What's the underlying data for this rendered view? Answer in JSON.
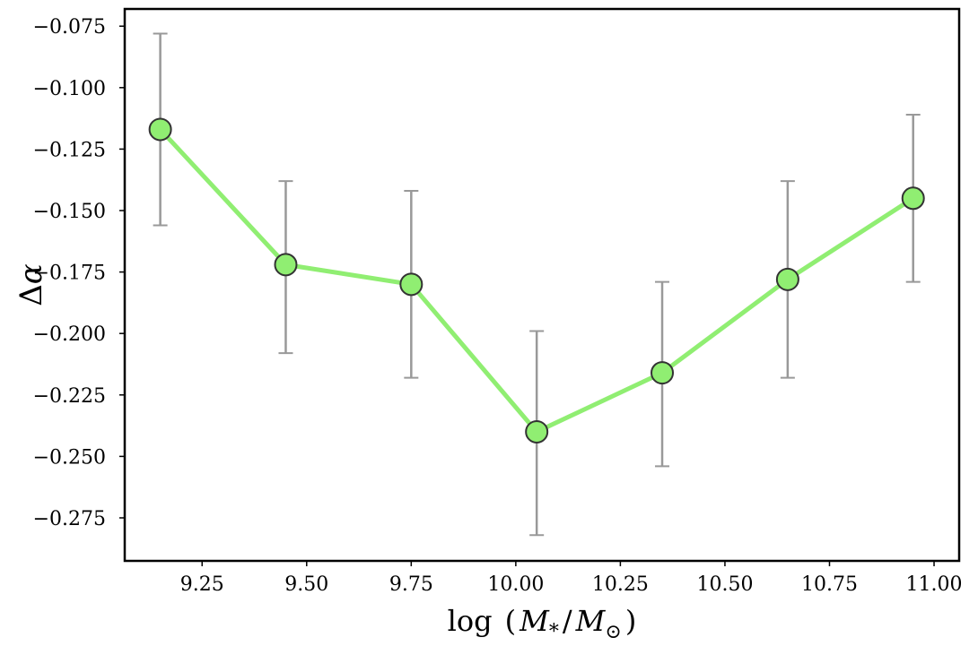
{
  "chart_data": {
    "type": "line",
    "xlabel": "log (M* / M⊙)",
    "ylabel": "Δα",
    "xlim": [
      9.065,
      11.06
    ],
    "ylim": [
      -0.2925,
      -0.068
    ],
    "xticks": [
      9.25,
      9.5,
      9.75,
      10.0,
      10.25,
      10.5,
      10.75,
      11.0
    ],
    "xtick_labels": [
      "9.25",
      "9.50",
      "9.75",
      "10.00",
      "10.25",
      "10.50",
      "10.75",
      "11.00"
    ],
    "yticks": [
      -0.075,
      -0.1,
      -0.125,
      -0.15,
      -0.175,
      -0.2,
      -0.225,
      -0.25,
      -0.275
    ],
    "ytick_labels": [
      "−0.075",
      "−0.100",
      "−0.125",
      "−0.150",
      "−0.175",
      "−0.200",
      "−0.225",
      "−0.250",
      "−0.275"
    ],
    "grid": false,
    "series": [
      {
        "x": [
          9.15,
          9.45,
          9.75,
          10.05,
          10.35,
          10.65,
          10.95
        ],
        "y": [
          -0.117,
          -0.172,
          -0.18,
          -0.24,
          -0.216,
          -0.178,
          -0.145
        ],
        "yerr_low": [
          -0.156,
          -0.208,
          -0.218,
          -0.282,
          -0.254,
          -0.218,
          -0.179
        ],
        "yerr_high": [
          -0.078,
          -0.138,
          -0.142,
          -0.199,
          -0.179,
          -0.138,
          -0.111
        ],
        "color": "#90ee72",
        "marker_edge": "#333333",
        "errorbar_color": "#999999"
      }
    ]
  }
}
